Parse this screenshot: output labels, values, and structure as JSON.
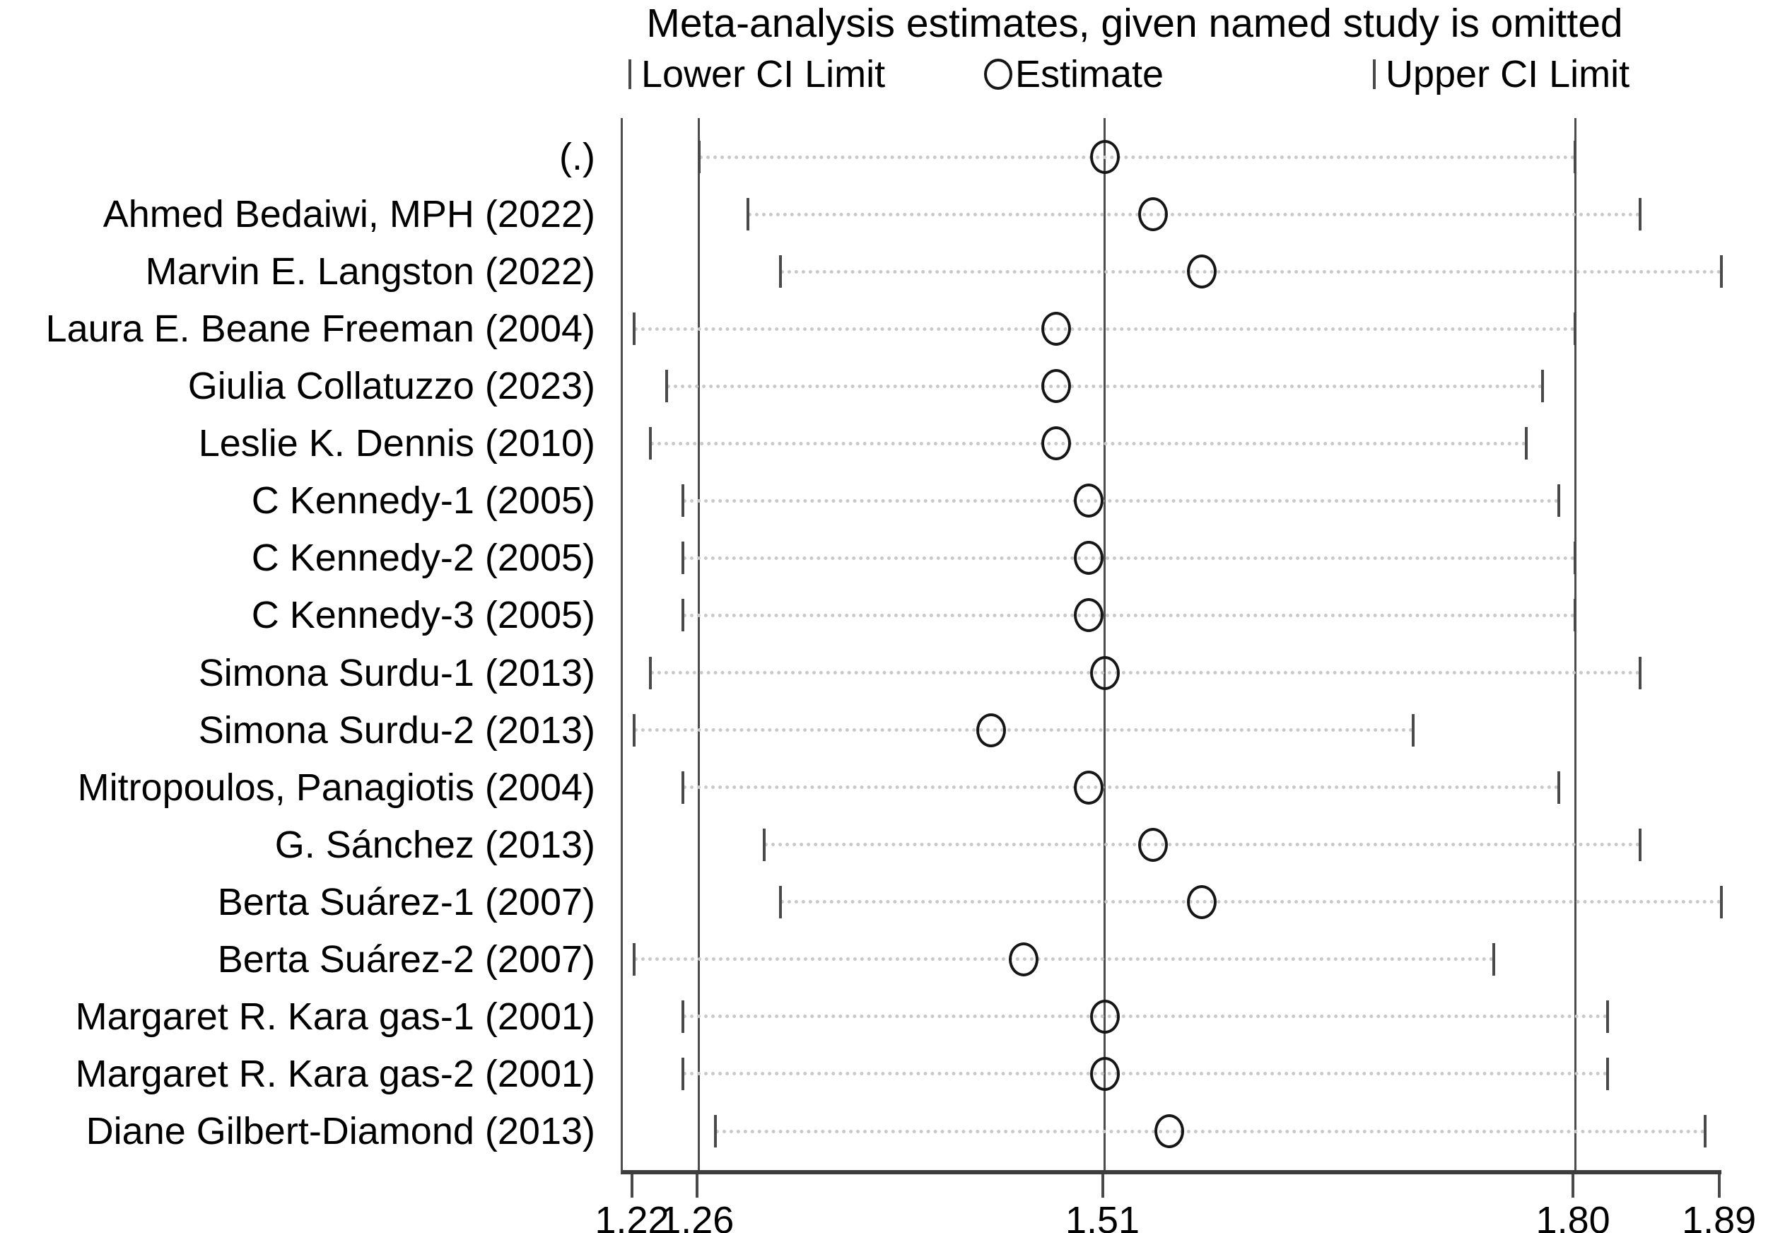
{
  "title": "Meta-analysis estimates, given named study is omitted",
  "legend": {
    "lower_label": "Lower CI Limit",
    "estimate_label": "Estimate",
    "upper_label": "Upper CI Limit"
  },
  "colors": {
    "axis_line": "#4d4d4d",
    "reference_line": "#4d4d4d",
    "ci_tick": "#4a4a4a",
    "estimate_marker": "#161616",
    "dotted_line": "#c9c9c9",
    "text": "#000000",
    "background": "#ffffff"
  },
  "chart_data": {
    "type": "scatter",
    "subtype": "leave-one-out-sensitivity-forest",
    "title": "Meta-analysis estimates, given named study is omitted",
    "xlabel": "",
    "ylabel": "",
    "xlim": [
      1.213,
      1.89
    ],
    "grid": false,
    "legend_position": "top",
    "x_ticks": [
      1.22,
      1.26,
      1.51,
      1.8,
      1.89
    ],
    "x_tick_labels": [
      "1.22",
      "1.26",
      "1.51",
      "1.80",
      "1.89"
    ],
    "reference_lines": [
      1.26,
      1.51,
      1.8
    ],
    "series_meaning": "Each row: pooled estimate and 95% CI when the named study is omitted",
    "studies": [
      {
        "label": "(.)",
        "lower": 1.26,
        "estimate": 1.51,
        "upper": 1.8
      },
      {
        "label": "Ahmed Bedaiwi, MPH (2022)",
        "lower": 1.29,
        "estimate": 1.54,
        "upper": 1.84
      },
      {
        "label": "Marvin E. Langston (2022)",
        "lower": 1.31,
        "estimate": 1.57,
        "upper": 1.89
      },
      {
        "label": "Laura E. Beane Freeman (2004)",
        "lower": 1.22,
        "estimate": 1.48,
        "upper": 1.8
      },
      {
        "label": "Giulia Collatuzzo (2023)",
        "lower": 1.24,
        "estimate": 1.48,
        "upper": 1.78
      },
      {
        "label": "Leslie K. Dennis (2010)",
        "lower": 1.23,
        "estimate": 1.48,
        "upper": 1.77
      },
      {
        "label": "C Kennedy-1 (2005)",
        "lower": 1.25,
        "estimate": 1.5,
        "upper": 1.79
      },
      {
        "label": "C Kennedy-2 (2005)",
        "lower": 1.25,
        "estimate": 1.5,
        "upper": 1.8
      },
      {
        "label": "C Kennedy-3 (2005)",
        "lower": 1.25,
        "estimate": 1.5,
        "upper": 1.8
      },
      {
        "label": "Simona Surdu-1 (2013)",
        "lower": 1.23,
        "estimate": 1.51,
        "upper": 1.84
      },
      {
        "label": "Simona Surdu-2 (2013)",
        "lower": 1.22,
        "estimate": 1.44,
        "upper": 1.7
      },
      {
        "label": "Mitropoulos, Panagiotis (2004)",
        "lower": 1.25,
        "estimate": 1.5,
        "upper": 1.79
      },
      {
        "label": "G. Sánchez (2013)",
        "lower": 1.3,
        "estimate": 1.54,
        "upper": 1.84
      },
      {
        "label": "Berta Suárez-1 (2007)",
        "lower": 1.31,
        "estimate": 1.57,
        "upper": 1.89
      },
      {
        "label": "Berta Suárez-2 (2007)",
        "lower": 1.22,
        "estimate": 1.46,
        "upper": 1.75
      },
      {
        "label": "Margaret R. Kara gas-1 (2001)",
        "lower": 1.25,
        "estimate": 1.51,
        "upper": 1.82
      },
      {
        "label": "Margaret R. Kara gas-2 (2001)",
        "lower": 1.25,
        "estimate": 1.51,
        "upper": 1.82
      },
      {
        "label": "Diane Gilbert-Diamond (2013)",
        "lower": 1.27,
        "estimate": 1.55,
        "upper": 1.88
      }
    ]
  }
}
